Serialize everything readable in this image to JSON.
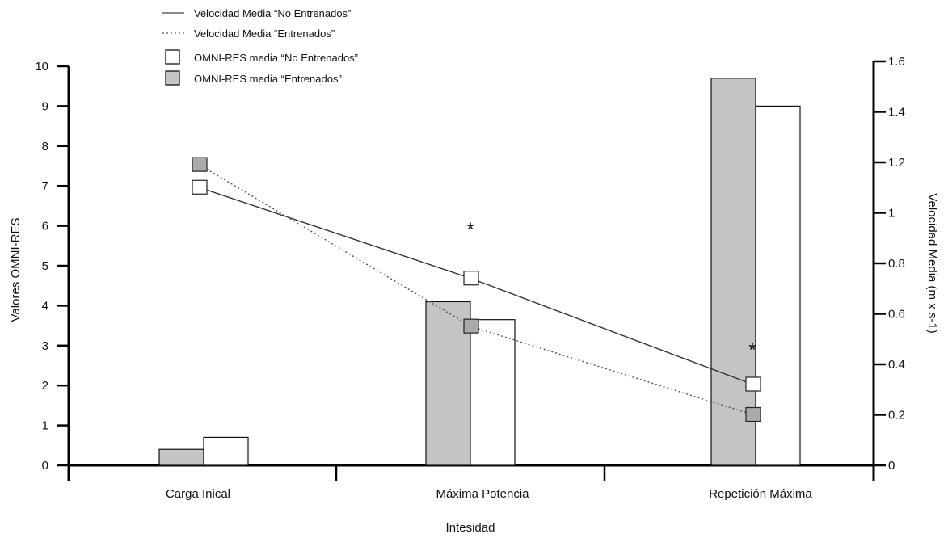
{
  "chart_data": {
    "type": "bar",
    "xlabel": "Intesidad",
    "ylabel_left": "Valores OMNI-RES",
    "ylabel_right": "Velocidad Media (m x s-1)",
    "categories": [
      "Carga Inical",
      "Máxima Potencia",
      "Repetición Máxima"
    ],
    "ylim_left": [
      0,
      10
    ],
    "ylim_right": [
      0,
      1.6
    ],
    "yticks_left": [
      "0",
      "1",
      "2",
      "3",
      "4",
      "5",
      "6",
      "7",
      "8",
      "9",
      "10"
    ],
    "yticks_right": [
      "0",
      "0.2",
      "0.4",
      "0.6",
      "0.8",
      "1",
      "1.2",
      "1.4",
      "1.6"
    ],
    "grid": false,
    "legend_position": "top-left",
    "bars": [
      {
        "name": "OMNI-RES media “Entrenados”",
        "color": "#c4c4c4",
        "values": [
          0.4,
          4.1,
          9.7
        ]
      },
      {
        "name": "OMNI-RES media “No Entrenados”",
        "color": "#ffffff",
        "values": [
          0.7,
          3.65,
          9.0
        ]
      }
    ],
    "lines": [
      {
        "name": "Velocidad Media “No Entrenados”",
        "style": "solid",
        "color": "#333333",
        "marker_fill": "#ffffff",
        "values": [
          1.1,
          0.74,
          0.32
        ]
      },
      {
        "name": "Velocidad Media “Entrenados”",
        "style": "dotted",
        "color": "#555555",
        "marker_fill": "#aaaaaa",
        "values": [
          1.19,
          0.55,
          0.2
        ]
      }
    ],
    "annotations": [
      {
        "text": "*",
        "category": "Máxima Potencia"
      },
      {
        "text": "*",
        "category": "Repetición Máxima"
      }
    ]
  }
}
